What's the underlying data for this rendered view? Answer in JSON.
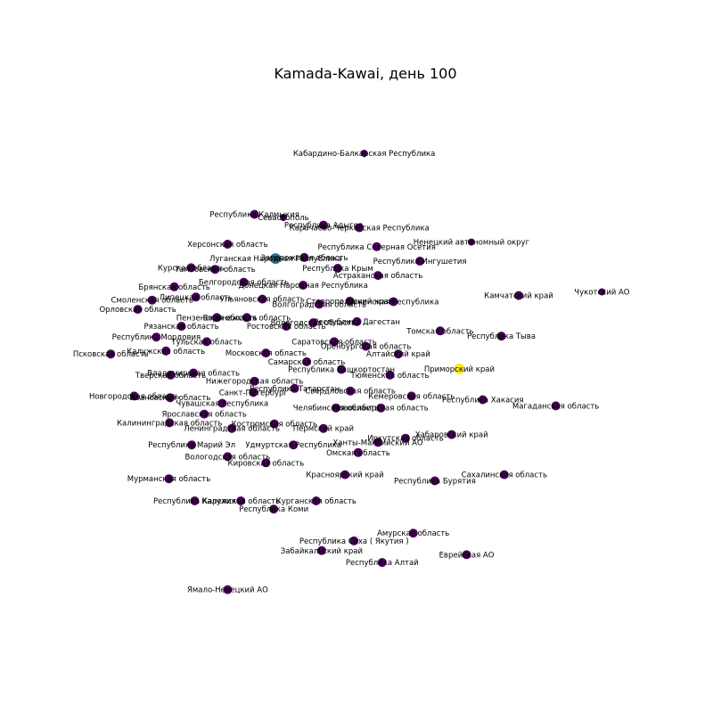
{
  "title": "Kamada-Kawai, день 100",
  "colors": {
    "default": "#440154",
    "highlight_teal": "#2a788e",
    "highlight_yellow": "#fde725",
    "background": "#ffffff"
  },
  "chart_data": {
    "type": "network",
    "title": "Kamada-Kawai, день 100",
    "grid": false,
    "nodes": [
      {
        "label": "Кабардино-Балкарская Республика",
        "x": 0.5,
        "y": 0.0,
        "color": "#440154",
        "size": 4
      },
      {
        "label": "Республика Калмыкия",
        "x": -1.33,
        "y": -1.19,
        "color": "#440154",
        "size": 5
      },
      {
        "label": "Севастополь",
        "x": -0.85,
        "y": -1.25,
        "color": "#440154",
        "size": 4
      },
      {
        "label": "Республика Адыгея",
        "x": -0.18,
        "y": -1.4,
        "color": "#440154",
        "size": 5
      },
      {
        "label": "Карачаево-Черкесская Республика",
        "x": 0.42,
        "y": -1.45,
        "color": "#440154",
        "size": 5
      },
      {
        "label": "Херсонская область",
        "x": -1.78,
        "y": -1.77,
        "color": "#440154",
        "size": 5
      },
      {
        "label": "Республика Северная Осетия",
        "x": 0.71,
        "y": -1.82,
        "color": "#440154",
        "size": 5
      },
      {
        "label": "Ненецкий автономный округ",
        "x": 2.29,
        "y": -1.73,
        "color": "#440154",
        "size": 4
      },
      {
        "label": "Луганская Народная Республика",
        "x": -0.98,
        "y": -2.05,
        "color": "#2a788e",
        "size": 6
      },
      {
        "label": "Запорожская область",
        "x": -0.5,
        "y": -2.03,
        "color": "#440154",
        "size": 5
      },
      {
        "label": "Курская область",
        "x": -2.39,
        "y": -2.23,
        "color": "#440154",
        "size": 5
      },
      {
        "label": "Тамбовская область",
        "x": -1.99,
        "y": -2.26,
        "color": "#440154",
        "size": 5
      },
      {
        "label": "Республика Крым",
        "x": 0.06,
        "y": -2.24,
        "color": "#440154",
        "size": 5
      },
      {
        "label": "Республика Ингушетия",
        "x": 1.43,
        "y": -2.1,
        "color": "#440154",
        "size": 5
      },
      {
        "label": "Астраханская область",
        "x": 0.73,
        "y": -2.38,
        "color": "#440154",
        "size": 5
      },
      {
        "label": "Белгородская область",
        "x": -1.51,
        "y": -2.51,
        "color": "#440154",
        "size": 5
      },
      {
        "label": "Донецкая Народная Республика",
        "x": -0.52,
        "y": -2.57,
        "color": "#440154",
        "size": 5
      },
      {
        "label": "Брянская область",
        "x": -2.67,
        "y": -2.6,
        "color": "#440154",
        "size": 5
      },
      {
        "label": "Липецкая область",
        "x": -2.31,
        "y": -2.8,
        "color": "#440154",
        "size": 5
      },
      {
        "label": "Смоленская область",
        "x": -3.04,
        "y": -2.86,
        "color": "#440154",
        "size": 5
      },
      {
        "label": "Ульяновская область",
        "x": -1.2,
        "y": -2.84,
        "color": "#440154",
        "size": 5
      },
      {
        "label": "Волгоградская область",
        "x": -0.25,
        "y": -2.94,
        "color": "#440154",
        "size": 5
      },
      {
        "label": "Ставропольский край",
        "x": 0.26,
        "y": -2.88,
        "color": "#440154",
        "size": 5
      },
      {
        "label": "Чеченская Республика",
        "x": 0.99,
        "y": -2.89,
        "color": "#440154",
        "size": 5
      },
      {
        "label": "Камчатский край",
        "x": 3.08,
        "y": -2.77,
        "color": "#440154",
        "size": 5
      },
      {
        "label": "Чукотский АО",
        "x": 4.47,
        "y": -2.7,
        "color": "#440154",
        "size": 4
      },
      {
        "label": "Орловская область",
        "x": -3.28,
        "y": -3.04,
        "color": "#440154",
        "size": 5
      },
      {
        "label": "Пензенская область",
        "x": -1.96,
        "y": -3.2,
        "color": "#440154",
        "size": 5
      },
      {
        "label": "Воронежская область",
        "x": -1.46,
        "y": -3.2,
        "color": "#440154",
        "size": 5
      },
      {
        "label": "Рязанская область",
        "x": -2.55,
        "y": -3.37,
        "color": "#440154",
        "size": 5
      },
      {
        "label": "Ростовская область",
        "x": -0.8,
        "y": -3.37,
        "color": "#440154",
        "size": 5
      },
      {
        "label": "Вологодская область",
        "x": -0.35,
        "y": -3.3,
        "color": "#440154",
        "size": 5
      },
      {
        "label": "Республика Дагестан",
        "x": 0.38,
        "y": -3.28,
        "color": "#440154",
        "size": 5
      },
      {
        "label": "Томская область",
        "x": 1.77,
        "y": -3.46,
        "color": "#440154",
        "size": 5
      },
      {
        "label": "Республика Тыва",
        "x": 2.79,
        "y": -3.56,
        "color": "#440154",
        "size": 5
      },
      {
        "label": "Республика Мордовия",
        "x": -2.97,
        "y": -3.58,
        "color": "#440154",
        "size": 5
      },
      {
        "label": "Тульская область",
        "x": -2.13,
        "y": -3.67,
        "color": "#440154",
        "size": 5
      },
      {
        "label": "Саратовская область",
        "x": 0.0,
        "y": -3.67,
        "color": "#440154",
        "size": 5
      },
      {
        "label": "Оренбургская область",
        "x": 0.53,
        "y": -3.76,
        "color": "#440154",
        "size": 5
      },
      {
        "label": "Калужская область",
        "x": -2.81,
        "y": -3.85,
        "color": "#440154",
        "size": 5
      },
      {
        "label": "Московская область",
        "x": -1.14,
        "y": -3.89,
        "color": "#440154",
        "size": 5
      },
      {
        "label": "Алтайский край",
        "x": 1.07,
        "y": -3.91,
        "color": "#440154",
        "size": 5
      },
      {
        "label": "Псковская область",
        "x": -3.73,
        "y": -3.91,
        "color": "#440154",
        "size": 5
      },
      {
        "label": "Самарская область",
        "x": -0.46,
        "y": -4.06,
        "color": "#440154",
        "size": 5
      },
      {
        "label": "Республика Башкортостан",
        "x": 0.12,
        "y": -4.21,
        "color": "#440154",
        "size": 5
      },
      {
        "label": "Тюменская область",
        "x": 0.93,
        "y": -4.32,
        "color": "#440154",
        "size": 5
      },
      {
        "label": "Приморский край",
        "x": 2.09,
        "y": -4.2,
        "color": "#fde725",
        "size": 6
      },
      {
        "label": "Владимирская область",
        "x": -2.35,
        "y": -4.28,
        "color": "#440154",
        "size": 5
      },
      {
        "label": "Тверская область",
        "x": -2.73,
        "y": -4.32,
        "color": "#440154",
        "size": 5
      },
      {
        "label": "Нижегородская область",
        "x": -1.33,
        "y": -4.44,
        "color": "#440154",
        "size": 5
      },
      {
        "label": "Республика Татарстан",
        "x": -0.66,
        "y": -4.58,
        "color": "#440154",
        "size": 5
      },
      {
        "label": "Свердловская область",
        "x": 0.27,
        "y": -4.63,
        "color": "#440154",
        "size": 5
      },
      {
        "label": "Санкт-Петербург",
        "x": -1.35,
        "y": -4.66,
        "color": "#440154",
        "size": 5
      },
      {
        "label": "Новгородская область",
        "x": -3.34,
        "y": -4.73,
        "color": "#440154",
        "size": 5
      },
      {
        "label": "Ивановская область",
        "x": -2.74,
        "y": -4.76,
        "color": "#440154",
        "size": 5
      },
      {
        "label": "Кемеровская область",
        "x": 1.29,
        "y": -4.73,
        "color": "#440154",
        "size": 5
      },
      {
        "label": "Республика Хакасия",
        "x": 2.48,
        "y": -4.8,
        "color": "#440154",
        "size": 5
      },
      {
        "label": "Чувашская Республика",
        "x": -1.87,
        "y": -4.87,
        "color": "#440154",
        "size": 5
      },
      {
        "label": "Челябинская область",
        "x": 0.03,
        "y": -4.96,
        "color": "#440154",
        "size": 5
      },
      {
        "label": "Новосибирская область",
        "x": 0.78,
        "y": -4.96,
        "color": "#440154",
        "size": 5
      },
      {
        "label": "Магаданская область",
        "x": 3.7,
        "y": -4.92,
        "color": "#440154",
        "size": 5
      },
      {
        "label": "Ярославская область",
        "x": -2.17,
        "y": -5.08,
        "color": "#440154",
        "size": 5
      },
      {
        "label": "Калининградская область",
        "x": -2.75,
        "y": -5.25,
        "color": "#440154",
        "size": 5
      },
      {
        "label": "Костромская область",
        "x": -1.0,
        "y": -5.27,
        "color": "#440154",
        "size": 5
      },
      {
        "label": "Ленинградская область",
        "x": -1.71,
        "y": -5.36,
        "color": "#440154",
        "size": 5
      },
      {
        "label": "Пермский край",
        "x": -0.18,
        "y": -5.36,
        "color": "#440154",
        "size": 5
      },
      {
        "label": "Хабаровский край",
        "x": 1.96,
        "y": -5.48,
        "color": "#440154",
        "size": 5
      },
      {
        "label": "Иркутская область",
        "x": 1.19,
        "y": -5.55,
        "color": "#440154",
        "size": 5
      },
      {
        "label": "Ханты-Мансийский АО",
        "x": 0.73,
        "y": -5.63,
        "color": "#440154",
        "size": 5
      },
      {
        "label": "Республика Марий Эл",
        "x": -2.38,
        "y": -5.68,
        "color": "#440154",
        "size": 5
      },
      {
        "label": "Удмуртская Республика",
        "x": -0.68,
        "y": -5.68,
        "color": "#440154",
        "size": 5
      },
      {
        "label": "Омская область",
        "x": 0.4,
        "y": -5.83,
        "color": "#440154",
        "size": 5
      },
      {
        "label": "Вологодская область",
        "x": -1.78,
        "y": -5.91,
        "color": "#440154",
        "size": 5
      },
      {
        "label": "Кировская область",
        "x": -1.14,
        "y": -6.03,
        "color": "#440154",
        "size": 5
      },
      {
        "label": "Красноярский край",
        "x": 0.18,
        "y": -6.26,
        "color": "#440154",
        "size": 5
      },
      {
        "label": "Сахалинская область",
        "x": 2.84,
        "y": -6.26,
        "color": "#440154",
        "size": 5
      },
      {
        "label": "Мурманская область",
        "x": -2.76,
        "y": -6.34,
        "color": "#440154",
        "size": 5
      },
      {
        "label": "Республика Бурятия",
        "x": 1.68,
        "y": -6.38,
        "color": "#440154",
        "size": 5
      },
      {
        "label": "Республика Карелия",
        "x": -2.33,
        "y": -6.77,
        "color": "#440154",
        "size": 5
      },
      {
        "label": "Калужская область",
        "x": -1.56,
        "y": -6.77,
        "color": "#440154",
        "size": 5
      },
      {
        "label": "Курганская область",
        "x": -0.3,
        "y": -6.77,
        "color": "#440154",
        "size": 5
      },
      {
        "label": "Республика Коми",
        "x": -1.01,
        "y": -6.93,
        "color": "#440154",
        "size": 5
      },
      {
        "label": "Амурская область",
        "x": 1.32,
        "y": -7.4,
        "color": "#440154",
        "size": 5
      },
      {
        "label": "Республика Саха ( Якутия )",
        "x": 0.33,
        "y": -7.55,
        "color": "#440154",
        "size": 5
      },
      {
        "label": "Забайкальский край",
        "x": -0.21,
        "y": -7.74,
        "color": "#440154",
        "size": 5
      },
      {
        "label": "Еврейская АО",
        "x": 2.21,
        "y": -7.82,
        "color": "#440154",
        "size": 5
      },
      {
        "label": "Республика Алтай",
        "x": 0.8,
        "y": -7.97,
        "color": "#440154",
        "size": 5
      },
      {
        "label": "Ямало-Ненецкий АО",
        "x": -1.78,
        "y": -8.5,
        "color": "#440154",
        "size": 5
      }
    ]
  }
}
